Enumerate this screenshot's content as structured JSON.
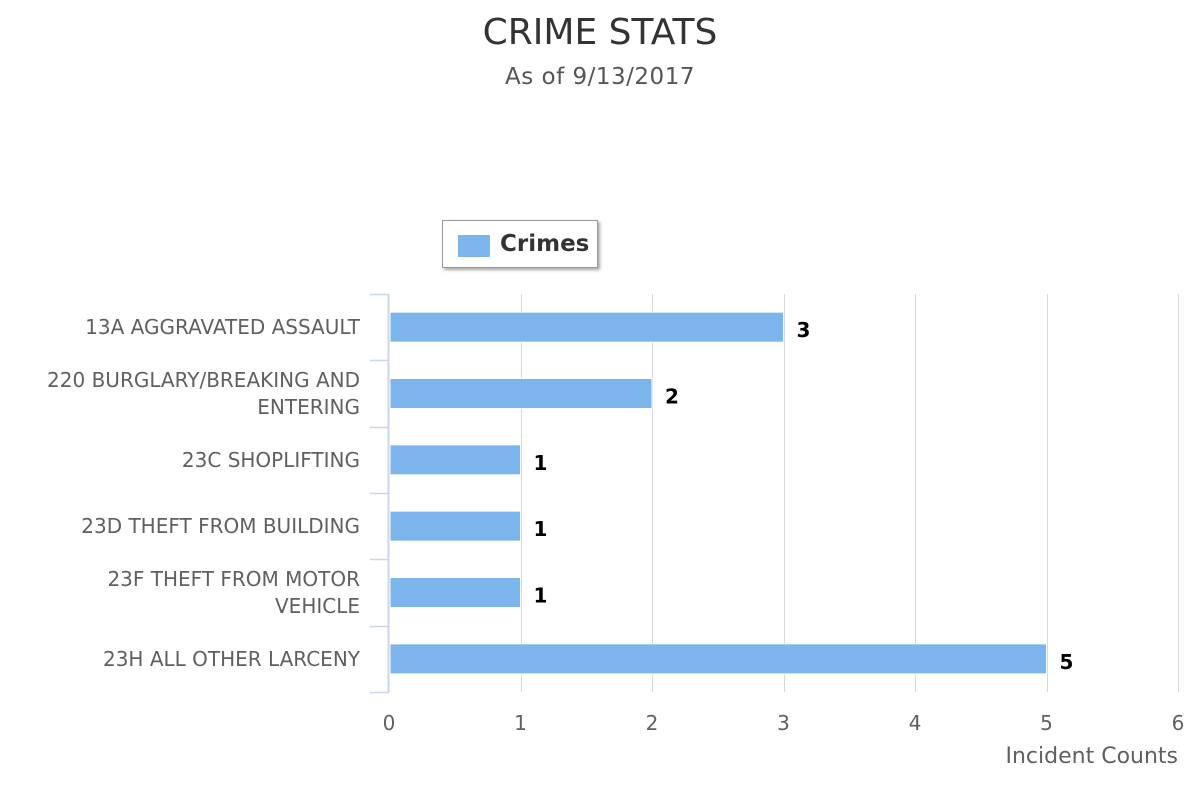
{
  "chart_data": {
    "type": "bar",
    "orientation": "horizontal",
    "title": "CRIME STATS",
    "subtitle": "As of 9/13/2017",
    "categories": [
      "13A AGGRAVATED ASSAULT",
      "220 BURGLARY/BREAKING AND ENTERING",
      "23C SHOPLIFTING",
      "23D THEFT FROM BUILDING",
      "23F THEFT FROM MOTOR VEHICLE",
      "23H ALL OTHER LARCENY"
    ],
    "category_lines": [
      [
        "13A AGGRAVATED ASSAULT"
      ],
      [
        "220 BURGLARY/BREAKING AND",
        "ENTERING"
      ],
      [
        "23C SHOPLIFTING"
      ],
      [
        "23D THEFT FROM BUILDING"
      ],
      [
        "23F THEFT FROM MOTOR",
        "VEHICLE"
      ],
      [
        "23H ALL OTHER LARCENY"
      ]
    ],
    "series": [
      {
        "name": "Crimes",
        "values": [
          3,
          2,
          1,
          1,
          1,
          5
        ],
        "color": "#7cb5ec"
      }
    ],
    "xlabel": "Incident Counts",
    "ylabel": "",
    "xlim": [
      0,
      6
    ],
    "ticks": [
      "0",
      "1",
      "2",
      "3",
      "4",
      "5",
      "6"
    ],
    "grid": true,
    "data_labels": true,
    "legend": {
      "placement": "top-left"
    }
  },
  "colors": {
    "bar": "#7cb5ec",
    "grid": "#d8d8d8",
    "axis": "#ccd6eb",
    "text": "#606060",
    "title": "#333333"
  }
}
